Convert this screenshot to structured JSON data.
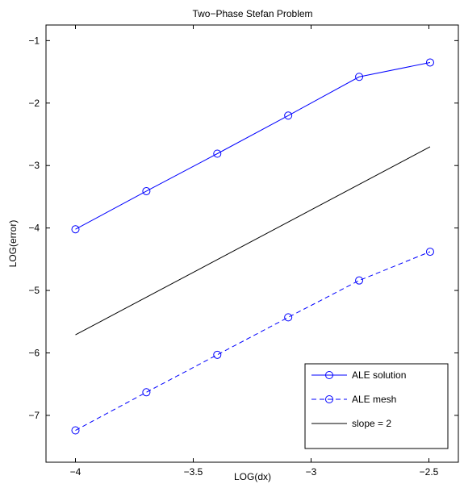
{
  "chart_data": {
    "type": "line",
    "title": "Two−Phase Stefan Problem",
    "xlabel": "LOG(dx)",
    "ylabel": "LOG(error)",
    "xlim": [
      -4.125,
      -2.375
    ],
    "ylim": [
      -7.75,
      -0.75
    ],
    "xticks": [
      -4,
      -3.5,
      -3,
      -2.5
    ],
    "xtick_labels": [
      "−4",
      "−3.5",
      "−3",
      "−2.5"
    ],
    "yticks": [
      -7,
      -6,
      -5,
      -4,
      -3,
      -2,
      -1
    ],
    "ytick_labels": [
      "−7",
      "−6",
      "−5",
      "−4",
      "−3",
      "−2",
      "−1"
    ],
    "grid": false,
    "legend_position": "bottom-right",
    "series": [
      {
        "name": "ALE solution",
        "color": "#0000ff",
        "line_style": "solid",
        "marker": "circle",
        "x": [
          -4.0,
          -3.699,
          -3.398,
          -3.097,
          -2.796,
          -2.495
        ],
        "y": [
          -4.02,
          -3.41,
          -2.81,
          -2.2,
          -1.58,
          -1.35
        ]
      },
      {
        "name": "ALE mesh",
        "color": "#0000ff",
        "line_style": "dashed",
        "marker": "circle",
        "x": [
          -4.0,
          -3.699,
          -3.398,
          -3.097,
          -2.796,
          -2.495
        ],
        "y": [
          -7.24,
          -6.63,
          -6.03,
          -5.43,
          -4.84,
          -4.38
        ]
      },
      {
        "name": "slope = 2",
        "color": "#000000",
        "line_style": "solid",
        "marker": "none",
        "x": [
          -4.0,
          -2.495
        ],
        "y": [
          -5.71,
          -2.7
        ]
      }
    ]
  }
}
